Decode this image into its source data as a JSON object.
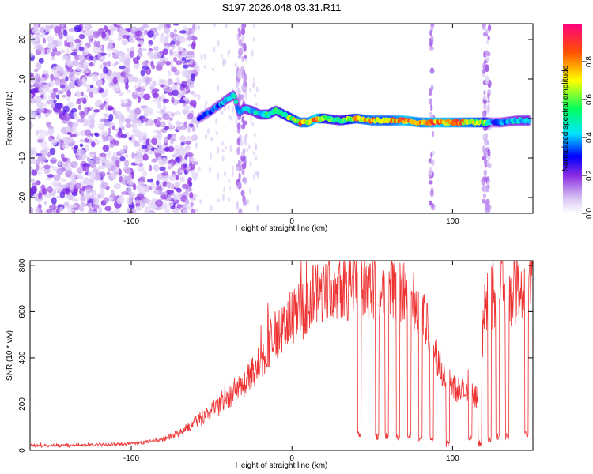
{
  "title": "S197.2026.048.03.31.R11",
  "chart_data": [
    {
      "type": "heatmap",
      "title": "S197.2026.048.03.31.R11",
      "xlabel": "Height of straight line (km)",
      "ylabel": "Frequency (Hz)",
      "xlim": [
        -163,
        150
      ],
      "ylim": [
        -24,
        24
      ],
      "xticks": [
        -100,
        0,
        100
      ],
      "yticks": [
        -20,
        -10,
        0,
        10,
        20
      ],
      "colorbar": {
        "label": "Normalized spectral amplitude",
        "range": [
          0,
          1
        ],
        "ticks": [
          0.0,
          0.2,
          0.4,
          0.6,
          0.8
        ]
      },
      "noise_region_x": [
        -163,
        -60
      ],
      "vertical_streaks_x": [
        -33,
        -30,
        87,
        120,
        122
      ],
      "ridge": {
        "x": [
          -58,
          -50,
          -45,
          -40,
          -36,
          -33,
          -30,
          -25,
          -20,
          -15,
          -10,
          -5,
          0,
          5,
          10,
          15,
          20,
          30,
          40,
          50,
          60,
          70,
          80,
          90,
          100,
          110,
          120,
          125,
          130,
          140,
          148
        ],
        "y": [
          0,
          2,
          3.5,
          5,
          6,
          1.5,
          2.5,
          2,
          1,
          1,
          2,
          1,
          0,
          -1,
          -1,
          0,
          0,
          -0.5,
          0,
          -0.5,
          -0.5,
          -0.5,
          -1,
          -1,
          -1,
          -1,
          -1,
          -1,
          -1,
          -0.5,
          -0.5
        ],
        "amplitude": [
          0.3,
          0.35,
          0.4,
          0.45,
          0.45,
          0.45,
          0.45,
          0.5,
          0.5,
          0.55,
          0.55,
          0.6,
          0.7,
          0.8,
          0.8,
          0.95,
          0.6,
          0.55,
          0.75,
          0.8,
          0.75,
          0.9,
          0.8,
          0.9,
          0.85,
          0.8,
          0.7,
          0.3,
          0.4,
          0.45,
          0.5
        ]
      }
    },
    {
      "type": "line",
      "xlabel": "Height of straight line (km)",
      "ylabel": "SNR (10 * v/v)",
      "xlim": [
        -163,
        150
      ],
      "ylim": [
        0,
        820
      ],
      "xticks": [
        -100,
        0,
        100
      ],
      "yticks": [
        0,
        200,
        400,
        600,
        800
      ],
      "color": "#ee3333",
      "series": [
        {
          "name": "SNR",
          "x": [
            -163,
            -150,
            -140,
            -130,
            -120,
            -110,
            -100,
            -90,
            -80,
            -70,
            -60,
            -55,
            -50,
            -45,
            -40,
            -35,
            -30,
            -25,
            -20,
            -15,
            -10,
            -5,
            0,
            5,
            10,
            15,
            20,
            25,
            30,
            35,
            40,
            45,
            50,
            55,
            60,
            65,
            70,
            75,
            80,
            85,
            90,
            95,
            100,
            105,
            110,
            115,
            120,
            125,
            130,
            135,
            140,
            145,
            150
          ],
          "y": [
            20,
            20,
            22,
            22,
            25,
            25,
            30,
            35,
            50,
            80,
            120,
            150,
            170,
            190,
            210,
            260,
            280,
            330,
            380,
            440,
            500,
            540,
            570,
            600,
            640,
            680,
            700,
            720,
            730,
            720,
            740,
            720,
            710,
            690,
            700,
            700,
            680,
            650,
            600,
            520,
            400,
            320,
            280,
            260,
            240,
            230,
            600,
            680,
            700,
            680,
            700,
            690,
            700
          ]
        }
      ],
      "dropouts": [
        {
          "x": [
            41,
            43
          ],
          "level": 70
        },
        {
          "x": [
            52,
            54
          ],
          "level": 60
        },
        {
          "x": [
            58,
            60
          ],
          "level": 60
        },
        {
          "x": [
            65,
            67
          ],
          "level": 55
        },
        {
          "x": [
            72,
            74
          ],
          "level": 60
        },
        {
          "x": [
            79,
            81
          ],
          "level": 50
        },
        {
          "x": [
            86,
            88
          ],
          "level": 50
        },
        {
          "x": [
            96,
            98
          ],
          "level": 30
        },
        {
          "x": [
            110,
            112
          ],
          "level": 50
        },
        {
          "x": [
            116,
            118
          ],
          "level": 30
        },
        {
          "x": [
            122,
            124
          ],
          "level": 50
        },
        {
          "x": [
            127,
            129
          ],
          "level": 60
        },
        {
          "x": [
            133,
            135
          ],
          "level": 60
        },
        {
          "x": [
            145,
            147
          ],
          "level": 70
        }
      ]
    }
  ]
}
